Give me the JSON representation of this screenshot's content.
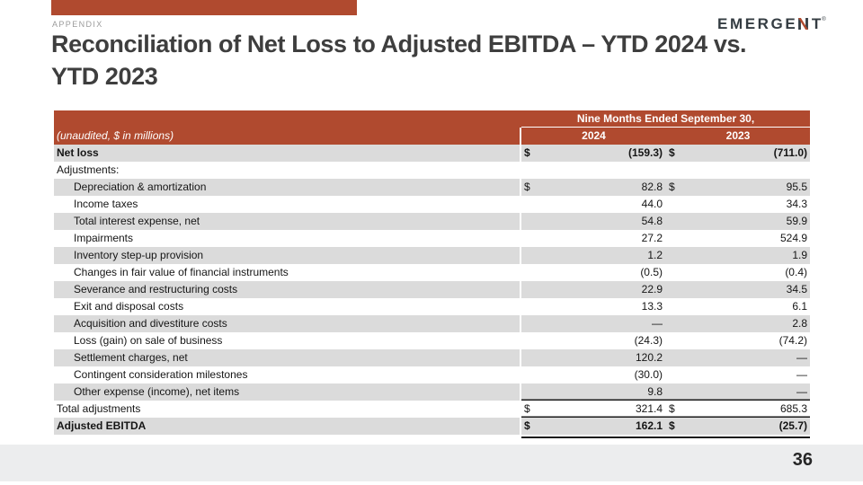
{
  "slide": {
    "kicker": "APPENDIX",
    "title_line1": "Reconciliation of Net Loss to Adjusted EBITDA – YTD 2024 vs.",
    "title_line2": "YTD 2023",
    "page_number": "36"
  },
  "logo": {
    "text_before_n": "EMERGE",
    "text_after_n": "T",
    "trademark": "®"
  },
  "colors": {
    "accent_red": "#b04a2f",
    "row_shade": "#dbdbdb",
    "footer_gray": "#ecedee"
  },
  "table": {
    "note": "(unaudited, $ in millions)",
    "period_header": "Nine Months Ended September 30,",
    "year_columns": [
      "2024",
      "2023"
    ],
    "rows": [
      {
        "label": "Net loss",
        "bold": true,
        "d1": "$",
        "v1": "(159.3)",
        "d2": "$",
        "v2": "(711.0)"
      },
      {
        "label": "Adjustments:",
        "d1": "",
        "v1": "",
        "d2": "",
        "v2": ""
      },
      {
        "label": "Depreciation & amortization",
        "indent": true,
        "d1": "$",
        "v1": "82.8",
        "d2": "$",
        "v2": "95.5"
      },
      {
        "label": "Income taxes",
        "indent": true,
        "d1": "",
        "v1": "44.0",
        "d2": "",
        "v2": "34.3"
      },
      {
        "label": "Total interest expense, net",
        "indent": true,
        "d1": "",
        "v1": "54.8",
        "d2": "",
        "v2": "59.9"
      },
      {
        "label": "Impairments",
        "indent": true,
        "d1": "",
        "v1": "27.2",
        "d2": "",
        "v2": "524.9"
      },
      {
        "label": "Inventory step-up provision",
        "indent": true,
        "d1": "",
        "v1": "1.2",
        "d2": "",
        "v2": "1.9"
      },
      {
        "label": "Changes in fair value of financial instruments",
        "indent": true,
        "d1": "",
        "v1": "(0.5)",
        "d2": "",
        "v2": "(0.4)"
      },
      {
        "label": "Severance and restructuring costs",
        "indent": true,
        "d1": "",
        "v1": "22.9",
        "d2": "",
        "v2": "34.5"
      },
      {
        "label": "Exit and disposal costs",
        "indent": true,
        "d1": "",
        "v1": "13.3",
        "d2": "",
        "v2": "6.1"
      },
      {
        "label": "Acquisition and divestiture costs",
        "indent": true,
        "d1": "",
        "v1": "—",
        "d2": "",
        "v2": "2.8"
      },
      {
        "label": "Loss (gain) on sale of business",
        "indent": true,
        "d1": "",
        "v1": "(24.3)",
        "d2": "",
        "v2": "(74.2)"
      },
      {
        "label": "Settlement charges, net",
        "indent": true,
        "d1": "",
        "v1": "120.2",
        "d2": "",
        "v2": "—"
      },
      {
        "label": "Contingent consideration milestones",
        "indent": true,
        "d1": "",
        "v1": "(30.0)",
        "d2": "",
        "v2": "—"
      },
      {
        "label": "Other expense (income), net items",
        "indent": true,
        "d1": "",
        "v1": "9.8",
        "d2": "",
        "v2": "—"
      },
      {
        "label": "Total adjustments",
        "d1": "$",
        "v1": "321.4",
        "d2": "$",
        "v2": "685.3",
        "rule": "top"
      },
      {
        "label": "Adjusted EBITDA",
        "bold": true,
        "d1": "$",
        "v1": "162.1",
        "d2": "$",
        "v2": "(25.7)",
        "rule": "top",
        "double_bottom": true
      }
    ]
  }
}
